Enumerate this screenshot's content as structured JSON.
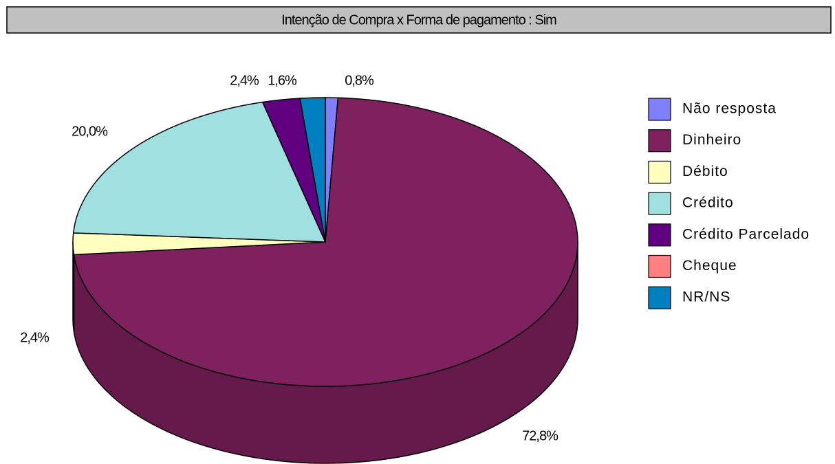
{
  "chart_data": {
    "type": "pie",
    "title": "Intenção de Compra x Forma de pagamento : Sim",
    "categories": [
      "Não resposta",
      "Dinheiro",
      "Débito",
      "Crédito",
      "Crédito Parcelado",
      "Cheque",
      "NR/NS"
    ],
    "values": [
      0.8,
      72.8,
      2.4,
      20.0,
      2.4,
      0,
      1.6
    ],
    "value_labels": [
      "0,8%",
      "72,8%",
      "2,4%",
      "20,0%",
      "2,4%",
      null,
      "1,6%"
    ],
    "colors": [
      "#8080ff",
      "#7f215e",
      "#ffffc0",
      "#a0e0e0",
      "#600080",
      "#ff8080",
      "#0080c0"
    ]
  }
}
